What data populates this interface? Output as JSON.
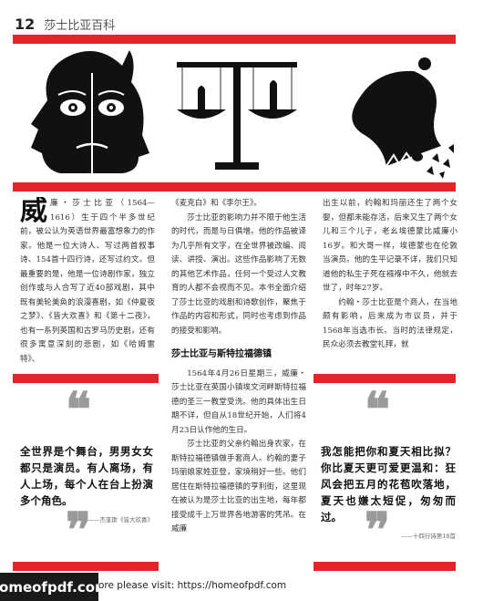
{
  "header": {
    "page_number": "12",
    "book_title": "莎士比亚百科"
  },
  "illustrations": {
    "left": "two-faced-mask-icon",
    "middle": "balance-scale-icon",
    "right": "broken-bell-icon"
  },
  "col1": {
    "dropcap": "威",
    "first": "廉・莎士比亚（1564—1616）生于四个半多世纪前，被公认为英语世界最富想象力的作家。他是一位大诗人、写过两首叙事诗、154首十四行诗，还写过约文。但最重要的是，他是一位诗剧作家，独立创作或与人合写了近40部戏剧，其中既有美轮美奂的浪漫喜剧，如《仲夏夜之梦》、《皆大欢喜》和《第十二夜》，也有一系列英国和古罗马历史剧，还有很多寓意深刻的悲剧，如《哈姆雷特》、"
  },
  "col2": {
    "p1": "《麦克白》和《李尔王》。",
    "p2": "莎士比亚的影响力并不限于他生活的时代，而是与日俱增。他的作品被译为几乎所有文字，在全世界被改编、阅读、讲授、演出。这些作品影响了无数的其他艺术作品，任何一个受过人文教育的人都不会视而不见。本书全面介绍了莎士比亚的戏剧和诗歌创作，聚焦于作品的内容和形式，同时也考虑到作品的接受和影响。",
    "section_title": "莎士比亚与斯特拉福德镇",
    "p3": "1564年4月26日星期三，威廉・莎士比亚在英国小镇埃文河畔斯特拉福德的圣三一教堂受洗。他的具体出生日期不详，但自从18世纪开始，人们将4月23日认作他的生日。",
    "p4": "莎士比亚的父亲约翰出身农家，在斯特拉福德镇做手套商人。约翰的妻子玛丽娘家姓亚登，家境稍好一些。他们居住在斯特拉福德镇的亨利街，这里现在被认为是莎士比亚的出生地，每年都接受成千上万世界各地游客的凭吊。在威廉"
  },
  "col3": {
    "p1": "出生以前，约翰和玛丽还生了两个女婴，但都未能存活，后来又生了两个女儿和三个儿子，老幺埃德蒙比威廉小16岁。和大哥一样，埃德蒙也在伦敦当演员。他的生平记录不详，我们只知道他的私生子死在襁褓中不久，他就去世了，时年27岁。",
    "p2": "约翰・莎士比亚是个商人，在当地颇有影响，后来成为市议员，并于1568年当选市长。当时的法律规定，民众必须去教堂礼拜，就"
  },
  "quote_left": {
    "text": "全世界是个舞台，男男女女都只是演员。有人离场，有人上场，每个人在台上扮演多个角色。",
    "source": "——杰奎斯《皆大欢喜》"
  },
  "quote_right": {
    "text": "我怎能把你和夏天相比拟？你比夏天更可爱更温和：狂风会把五月的花苞吹落地，夏天也嫌太短促，匆匆而过。",
    "source": "——十四行诗第18首"
  },
  "quotemarks": {
    "open": "❝",
    "close": "❞"
  },
  "footer": {
    "logo": "homeofpdf.com",
    "note": "ore please visit: https://homeofpdf.com"
  },
  "colors": {
    "accent": "#e3242b",
    "quote_mark": "#9a9a9a"
  }
}
